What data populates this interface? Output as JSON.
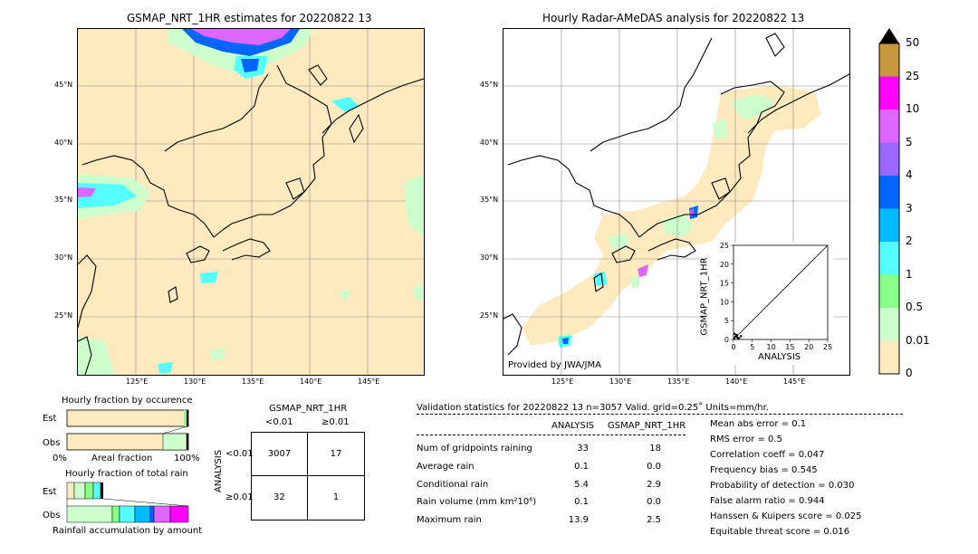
{
  "left_map": {
    "title": "GSMAP_NRT_1HR estimates for 20220822 13",
    "lat_labels": [
      "45°N",
      "40°N",
      "35°N",
      "30°N",
      "25°N"
    ],
    "lon_labels": [
      "125°E",
      "130°E",
      "135°E",
      "140°E",
      "145°E"
    ]
  },
  "right_map": {
    "title": "Hourly Radar-AMeDAS analysis for 20220822 13",
    "lat_labels": [
      "45°N",
      "40°N",
      "35°N",
      "30°N",
      "25°N"
    ],
    "lon_labels": [
      "125°E",
      "130°E",
      "135°E",
      "140°E",
      "145°E"
    ],
    "credit": "Provided by JWA/JMA"
  },
  "colorbar": {
    "labels": [
      "50",
      "25",
      "10",
      "5",
      "4",
      "3",
      "2",
      "1",
      "0.5",
      "0.01",
      "0"
    ],
    "colors": [
      "#c8963c",
      "#ff00ff",
      "#dd66ff",
      "#9966ff",
      "#0066ff",
      "#00bbff",
      "#55ffff",
      "#88ff88",
      "#ccffcc",
      "#ffeabf"
    ]
  },
  "chart_data": [
    {
      "type": "scatter",
      "title": "",
      "xlabel": "ANALYSIS",
      "ylabel": "GSMAP_NRT_1HR",
      "xlim": [
        0,
        25
      ],
      "ylim": [
        0,
        25
      ],
      "x_ticks": [
        "0",
        "5",
        "10",
        "15",
        "20",
        "25"
      ],
      "y_ticks": [
        "0",
        "5",
        "10",
        "15",
        "20",
        "25"
      ],
      "points": [
        [
          0.2,
          0.3
        ],
        [
          0.5,
          0.8
        ],
        [
          1.0,
          0.6
        ],
        [
          1.5,
          0.4
        ],
        [
          0.8,
          1.2
        ],
        [
          2.0,
          0.9
        ],
        [
          0.3,
          1.5
        ],
        [
          1.2,
          0.2
        ]
      ]
    },
    {
      "type": "bar",
      "title": "Hourly fraction by occurence",
      "categories": [
        "Est",
        "Obs"
      ],
      "xlabel": "Areal fraction",
      "x_ticks": [
        "0%",
        "100%"
      ]
    },
    {
      "type": "bar",
      "title": "Hourly fraction of total rain",
      "categories": [
        "Est",
        "Obs"
      ],
      "xlabel": "Rainfall accumulation by amount"
    },
    {
      "type": "table",
      "title": "GSMAP_NRT_1HR",
      "col_headers": [
        "<0.01",
        "≥0.01"
      ],
      "row_label": "ANALYSIS",
      "row_headers": [
        "<0.01",
        "≥0.01"
      ],
      "cells": [
        [
          "3007",
          "17"
        ],
        [
          "32",
          "1"
        ]
      ]
    }
  ],
  "validation": {
    "header": "Validation statistics for 20220822 13  n=3057 Valid. grid=0.25˚ Units=mm/hr.",
    "col_analysis": "ANALYSIS",
    "col_gsmap": "GSMAP_NRT_1HR",
    "rows": [
      {
        "label": "Num of gridpoints raining",
        "a": "33",
        "g": "18"
      },
      {
        "label": "Average rain",
        "a": "0.1",
        "g": "0.0"
      },
      {
        "label": "Conditional rain",
        "a": "5.4",
        "g": "2.9"
      },
      {
        "label": "Rain volume (mm km²10⁶)",
        "a": "0.1",
        "g": "0.0"
      },
      {
        "label": "Maximum rain",
        "a": "13.9",
        "g": "2.5"
      }
    ],
    "scores": [
      "Mean abs error =    0.1",
      "RMS error =    0.5",
      "Correlation coeff =  0.047",
      "Frequency bias =  0.545",
      "Probability of detection =  0.030",
      "False alarm ratio =  0.944",
      "Hanssen & Kuipers score =  0.025",
      "Equitable threat score =  0.016"
    ]
  }
}
